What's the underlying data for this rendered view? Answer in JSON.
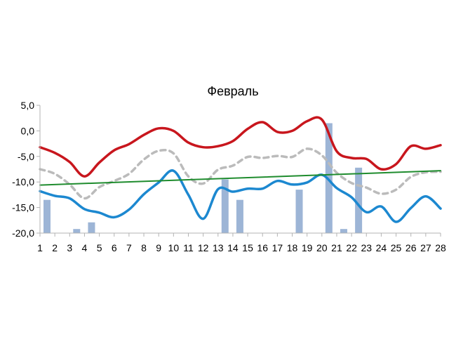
{
  "chart_data": {
    "type": "line",
    "title": "Февраль",
    "xlabel": "",
    "ylabel": "",
    "categories": [
      "1",
      "2",
      "3",
      "4",
      "5",
      "6",
      "7",
      "8",
      "9",
      "10",
      "11",
      "12",
      "13",
      "14",
      "15",
      "16",
      "17",
      "18",
      "19",
      "20",
      "21",
      "22",
      "23",
      "24",
      "25",
      "26",
      "27",
      "28"
    ],
    "ylim": [
      -20,
      5
    ],
    "yticks": [
      "5,0",
      "0,0",
      "-5,0",
      "-10,0",
      "-15,0",
      "-20,0"
    ],
    "ytick_values": [
      5,
      0,
      -5,
      -10,
      -15,
      -20
    ],
    "grid": false,
    "legend": "none",
    "series": [
      {
        "kind": "bar",
        "color": "#9db5d6",
        "values": [
          -13.5,
          null,
          -19.2,
          -17.9,
          null,
          null,
          null,
          null,
          null,
          null,
          null,
          null,
          -9.5,
          -13.5,
          null,
          null,
          null,
          -11.5,
          null,
          1.5,
          -19.2,
          -7.2,
          null,
          null,
          null,
          null,
          null,
          null
        ]
      },
      {
        "kind": "line",
        "color": "#c8161d",
        "values": [
          -3.2,
          -4.3,
          -6.1,
          -8.9,
          -6.2,
          -3.8,
          -2.6,
          -0.8,
          0.5,
          0.0,
          -2.3,
          -3.2,
          -3.0,
          -2.0,
          0.4,
          1.7,
          -0.2,
          0.0,
          1.9,
          2.2,
          -4.0,
          -5.3,
          -5.5,
          -7.5,
          -6.5,
          -3.0,
          -3.5,
          -2.8
        ]
      },
      {
        "kind": "line",
        "color": "#bbbbbb",
        "dashed": true,
        "values": [
          -7.5,
          -8.4,
          -10.5,
          -13.2,
          -11.0,
          -9.8,
          -8.4,
          -5.6,
          -3.9,
          -4.4,
          -8.9,
          -10.3,
          -7.6,
          -6.8,
          -5.1,
          -5.3,
          -4.9,
          -5.1,
          -3.5,
          -4.8,
          -8.2,
          -10.2,
          -11.1,
          -12.3,
          -11.5,
          -9.0,
          -8.1,
          -8.0
        ]
      },
      {
        "kind": "line",
        "color": "#1c88d0",
        "values": [
          -11.8,
          -12.7,
          -13.2,
          -15.3,
          -16.0,
          -16.9,
          -15.4,
          -12.4,
          -10.1,
          -7.8,
          -12.5,
          -17.2,
          -11.4,
          -11.9,
          -11.3,
          -11.3,
          -9.8,
          -10.5,
          -10.1,
          -8.6,
          -11.2,
          -13.0,
          -15.9,
          -14.8,
          -17.8,
          -15.1,
          -12.8,
          -15.2
        ]
      },
      {
        "kind": "line",
        "color": "#1f8c2e",
        "trend": true,
        "values": [
          -10.6,
          -10.5,
          -10.4,
          -10.3,
          -10.2,
          -10.1,
          -10.0,
          -9.9,
          -9.8,
          -9.7,
          -9.6,
          -9.5,
          -9.4,
          -9.3,
          -9.2,
          -9.1,
          -9.0,
          -8.9,
          -8.8,
          -8.7,
          -8.6,
          -8.4,
          -8.3,
          -8.2,
          -8.1,
          -8.0,
          -7.9,
          -7.8
        ]
      }
    ]
  }
}
